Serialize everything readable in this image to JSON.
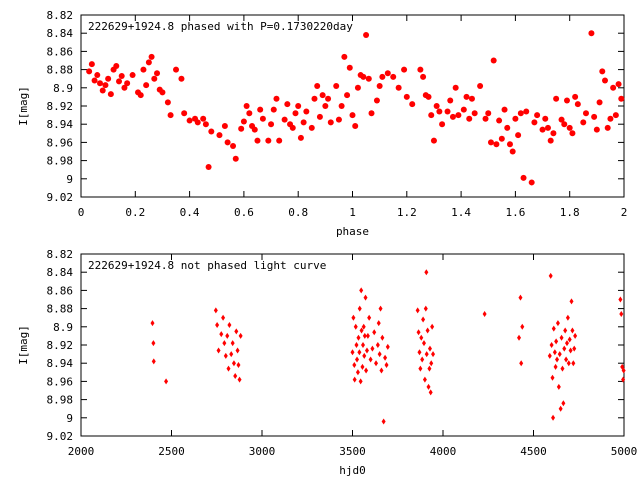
{
  "chart_data": [
    {
      "type": "scatter",
      "title": "222629+1924.8 phased with P=0.1730220day",
      "xlabel": "phase",
      "ylabel": "I[mag]",
      "xlim": [
        0,
        2
      ],
      "ylim": [
        9.02,
        8.82
      ],
      "y_inverted": true,
      "xticks": [
        "0",
        "0.2",
        "0.4",
        "0.6",
        "0.8",
        "1",
        "1.2",
        "1.4",
        "1.6",
        "1.8",
        "2"
      ],
      "yticks": [
        "8.82",
        "8.84",
        "8.86",
        "8.88",
        "8.9",
        "8.92",
        "8.94",
        "8.96",
        "8.98",
        "9",
        "9.02"
      ],
      "marker": "filled-circle",
      "color": "#ff0000",
      "points": [
        [
          0.03,
          8.882
        ],
        [
          0.04,
          8.874
        ],
        [
          0.05,
          8.892
        ],
        [
          0.06,
          8.886
        ],
        [
          0.07,
          8.895
        ],
        [
          0.08,
          8.903
        ],
        [
          0.09,
          8.897
        ],
        [
          0.1,
          8.89
        ],
        [
          0.11,
          8.907
        ],
        [
          0.12,
          8.88
        ],
        [
          0.13,
          8.876
        ],
        [
          0.14,
          8.893
        ],
        [
          0.15,
          8.887
        ],
        [
          0.16,
          8.9
        ],
        [
          0.17,
          8.895
        ],
        [
          0.19,
          8.886
        ],
        [
          0.21,
          8.905
        ],
        [
          0.22,
          8.908
        ],
        [
          0.23,
          8.88
        ],
        [
          0.24,
          8.897
        ],
        [
          0.25,
          8.872
        ],
        [
          0.26,
          8.866
        ],
        [
          0.27,
          8.89
        ],
        [
          0.28,
          8.884
        ],
        [
          0.29,
          8.902
        ],
        [
          0.3,
          8.905
        ],
        [
          0.32,
          8.916
        ],
        [
          0.33,
          8.93
        ],
        [
          0.35,
          8.88
        ],
        [
          0.37,
          8.89
        ],
        [
          0.38,
          8.928
        ],
        [
          0.4,
          8.936
        ],
        [
          0.42,
          8.934
        ],
        [
          0.43,
          8.938
        ],
        [
          0.45,
          8.934
        ],
        [
          0.46,
          8.94
        ],
        [
          0.47,
          8.987
        ],
        [
          0.48,
          8.948
        ],
        [
          0.51,
          8.952
        ],
        [
          0.53,
          8.942
        ],
        [
          0.54,
          8.96
        ],
        [
          0.56,
          8.964
        ],
        [
          0.57,
          8.978
        ],
        [
          0.59,
          8.945
        ],
        [
          0.6,
          8.937
        ],
        [
          0.61,
          8.92
        ],
        [
          0.62,
          8.928
        ],
        [
          0.63,
          8.942
        ],
        [
          0.64,
          8.946
        ],
        [
          0.65,
          8.958
        ],
        [
          0.66,
          8.924
        ],
        [
          0.67,
          8.934
        ],
        [
          0.69,
          8.958
        ],
        [
          0.7,
          8.94
        ],
        [
          0.71,
          8.924
        ],
        [
          0.72,
          8.912
        ],
        [
          0.73,
          8.958
        ],
        [
          0.75,
          8.935
        ],
        [
          0.76,
          8.918
        ],
        [
          0.77,
          8.94
        ],
        [
          0.78,
          8.944
        ],
        [
          0.79,
          8.928
        ],
        [
          0.8,
          8.92
        ],
        [
          0.81,
          8.955
        ],
        [
          0.82,
          8.938
        ],
        [
          0.83,
          8.926
        ],
        [
          0.85,
          8.944
        ],
        [
          0.86,
          8.912
        ],
        [
          0.87,
          8.898
        ],
        [
          0.88,
          8.932
        ],
        [
          0.89,
          8.908
        ],
        [
          0.9,
          8.92
        ],
        [
          0.91,
          8.912
        ],
        [
          0.92,
          8.938
        ],
        [
          0.94,
          8.898
        ],
        [
          0.95,
          8.935
        ],
        [
          0.96,
          8.92
        ],
        [
          0.97,
          8.866
        ],
        [
          0.98,
          8.908
        ],
        [
          0.99,
          8.878
        ],
        [
          1.0,
          8.93
        ],
        [
          1.01,
          8.942
        ],
        [
          1.02,
          8.9
        ],
        [
          1.03,
          8.886
        ],
        [
          1.04,
          8.888
        ],
        [
          1.05,
          8.842
        ],
        [
          1.06,
          8.89
        ],
        [
          1.07,
          8.928
        ],
        [
          1.09,
          8.914
        ],
        [
          1.1,
          8.898
        ],
        [
          1.11,
          8.888
        ],
        [
          1.13,
          8.884
        ],
        [
          1.15,
          8.888
        ],
        [
          1.17,
          8.9
        ],
        [
          1.19,
          8.88
        ],
        [
          1.2,
          8.91
        ],
        [
          1.22,
          8.918
        ],
        [
          1.25,
          8.88
        ],
        [
          1.26,
          8.888
        ],
        [
          1.27,
          8.908
        ],
        [
          1.28,
          8.91
        ],
        [
          1.29,
          8.93
        ],
        [
          1.3,
          8.958
        ],
        [
          1.31,
          8.92
        ],
        [
          1.32,
          8.926
        ],
        [
          1.33,
          8.94
        ],
        [
          1.35,
          8.926
        ],
        [
          1.36,
          8.914
        ],
        [
          1.37,
          8.932
        ],
        [
          1.38,
          8.9
        ],
        [
          1.39,
          8.93
        ],
        [
          1.41,
          8.924
        ],
        [
          1.42,
          8.91
        ],
        [
          1.43,
          8.934
        ],
        [
          1.44,
          8.912
        ],
        [
          1.45,
          8.928
        ],
        [
          1.47,
          8.898
        ],
        [
          1.49,
          8.934
        ],
        [
          1.5,
          8.928
        ],
        [
          1.51,
          8.96
        ],
        [
          1.52,
          8.87
        ],
        [
          1.53,
          8.962
        ],
        [
          1.54,
          8.936
        ],
        [
          1.55,
          8.956
        ],
        [
          1.56,
          8.924
        ],
        [
          1.57,
          8.944
        ],
        [
          1.58,
          8.962
        ],
        [
          1.59,
          8.97
        ],
        [
          1.6,
          8.934
        ],
        [
          1.61,
          8.952
        ],
        [
          1.62,
          8.928
        ],
        [
          1.63,
          8.999
        ],
        [
          1.64,
          8.926
        ],
        [
          1.66,
          9.004
        ],
        [
          1.67,
          8.938
        ],
        [
          1.68,
          8.93
        ],
        [
          1.7,
          8.946
        ],
        [
          1.71,
          8.934
        ],
        [
          1.72,
          8.944
        ],
        [
          1.73,
          8.958
        ],
        [
          1.74,
          8.95
        ],
        [
          1.75,
          8.912
        ],
        [
          1.77,
          8.935
        ],
        [
          1.78,
          8.94
        ],
        [
          1.79,
          8.914
        ],
        [
          1.8,
          8.944
        ],
        [
          1.81,
          8.95
        ],
        [
          1.82,
          8.91
        ],
        [
          1.83,
          8.918
        ],
        [
          1.85,
          8.938
        ],
        [
          1.86,
          8.928
        ],
        [
          1.88,
          8.84
        ],
        [
          1.89,
          8.932
        ],
        [
          1.9,
          8.946
        ],
        [
          1.91,
          8.916
        ],
        [
          1.92,
          8.882
        ],
        [
          1.93,
          8.892
        ],
        [
          1.94,
          8.944
        ],
        [
          1.95,
          8.934
        ],
        [
          1.96,
          8.9
        ],
        [
          1.97,
          8.93
        ],
        [
          1.98,
          8.896
        ],
        [
          1.99,
          8.912
        ]
      ]
    },
    {
      "type": "scatter",
      "title": "222629+1924.8 not phased light curve",
      "xlabel": "hjd0",
      "ylabel": "I[mag]",
      "xlim": [
        2000,
        5000
      ],
      "ylim": [
        9.02,
        8.82
      ],
      "y_inverted": true,
      "xticks": [
        "2000",
        "2500",
        "3000",
        "3500",
        "4000",
        "4500",
        "5000"
      ],
      "yticks": [
        "8.82",
        "8.84",
        "8.86",
        "8.88",
        "8.9",
        "8.92",
        "8.94",
        "8.96",
        "8.98",
        "9",
        "9.02"
      ],
      "marker": "small-diamond",
      "color": "#ff0000",
      "points": [
        [
          2395,
          8.896
        ],
        [
          2400,
          8.918
        ],
        [
          2402,
          8.938
        ],
        [
          2470,
          8.96
        ],
        [
          2745,
          8.882
        ],
        [
          2752,
          8.898
        ],
        [
          2760,
          8.926
        ],
        [
          2775,
          8.908
        ],
        [
          2785,
          8.89
        ],
        [
          2792,
          8.918
        ],
        [
          2800,
          8.932
        ],
        [
          2808,
          8.91
        ],
        [
          2815,
          8.946
        ],
        [
          2820,
          8.898
        ],
        [
          2830,
          8.93
        ],
        [
          2838,
          8.918
        ],
        [
          2845,
          8.94
        ],
        [
          2852,
          8.954
        ],
        [
          2858,
          8.905
        ],
        [
          2865,
          8.926
        ],
        [
          2870,
          8.942
        ],
        [
          2876,
          8.958
        ],
        [
          2882,
          8.91
        ],
        [
          3500,
          8.928
        ],
        [
          3505,
          8.89
        ],
        [
          3510,
          8.942
        ],
        [
          3512,
          8.958
        ],
        [
          3518,
          8.9
        ],
        [
          3522,
          8.92
        ],
        [
          3525,
          8.936
        ],
        [
          3530,
          8.95
        ],
        [
          3533,
          8.912
        ],
        [
          3538,
          8.928
        ],
        [
          3540,
          8.88
        ],
        [
          3545,
          8.96
        ],
        [
          3548,
          8.86
        ],
        [
          3550,
          8.904
        ],
        [
          3555,
          8.944
        ],
        [
          3558,
          8.92
        ],
        [
          3562,
          8.9
        ],
        [
          3565,
          8.932
        ],
        [
          3568,
          8.91
        ],
        [
          3572,
          8.868
        ],
        [
          3575,
          8.948
        ],
        [
          3580,
          8.926
        ],
        [
          3585,
          8.91
        ],
        [
          3592,
          8.89
        ],
        [
          3600,
          8.936
        ],
        [
          3610,
          8.924
        ],
        [
          3620,
          8.906
        ],
        [
          3630,
          8.94
        ],
        [
          3640,
          8.92
        ],
        [
          3645,
          8.896
        ],
        [
          3650,
          8.93
        ],
        [
          3655,
          8.88
        ],
        [
          3660,
          8.948
        ],
        [
          3665,
          8.912
        ],
        [
          3672,
          9.004
        ],
        [
          3680,
          8.934
        ],
        [
          3688,
          8.942
        ],
        [
          3695,
          8.922
        ],
        [
          3860,
          8.882
        ],
        [
          3865,
          8.906
        ],
        [
          3870,
          8.928
        ],
        [
          3875,
          8.946
        ],
        [
          3880,
          8.912
        ],
        [
          3885,
          8.936
        ],
        [
          3890,
          8.892
        ],
        [
          3895,
          8.918
        ],
        [
          3900,
          8.958
        ],
        [
          3905,
          8.88
        ],
        [
          3908,
          8.84
        ],
        [
          3910,
          8.93
        ],
        [
          3915,
          8.904
        ],
        [
          3920,
          8.966
        ],
        [
          3925,
          8.946
        ],
        [
          3928,
          8.924
        ],
        [
          3932,
          8.972
        ],
        [
          3935,
          8.94
        ],
        [
          3940,
          8.9
        ],
        [
          3945,
          8.93
        ],
        [
          4230,
          8.886
        ],
        [
          4420,
          8.912
        ],
        [
          4428,
          8.868
        ],
        [
          4432,
          8.94
        ],
        [
          4438,
          8.9
        ],
        [
          4590,
          8.932
        ],
        [
          4595,
          8.844
        ],
        [
          4600,
          8.92
        ],
        [
          4605,
          8.956
        ],
        [
          4608,
          9.0
        ],
        [
          4612,
          8.902
        ],
        [
          4618,
          8.928
        ],
        [
          4622,
          8.944
        ],
        [
          4625,
          8.916
        ],
        [
          4630,
          8.936
        ],
        [
          4635,
          8.896
        ],
        [
          4640,
          8.966
        ],
        [
          4645,
          8.93
        ],
        [
          4650,
          8.99
        ],
        [
          4655,
          8.912
        ],
        [
          4660,
          8.946
        ],
        [
          4665,
          8.984
        ],
        [
          4670,
          8.924
        ],
        [
          4675,
          8.904
        ],
        [
          4680,
          8.936
        ],
        [
          4685,
          8.918
        ],
        [
          4690,
          8.89
        ],
        [
          4695,
          8.94
        ],
        [
          4700,
          8.914
        ],
        [
          4705,
          8.926
        ],
        [
          4710,
          8.872
        ],
        [
          4715,
          8.904
        ],
        [
          4720,
          8.94
        ],
        [
          4725,
          8.924
        ],
        [
          4730,
          8.91
        ],
        [
          4980,
          8.87
        ],
        [
          4985,
          8.886
        ],
        [
          4990,
          8.944
        ],
        [
          4995,
          8.958
        ],
        [
          4998,
          8.948
        ]
      ]
    }
  ]
}
